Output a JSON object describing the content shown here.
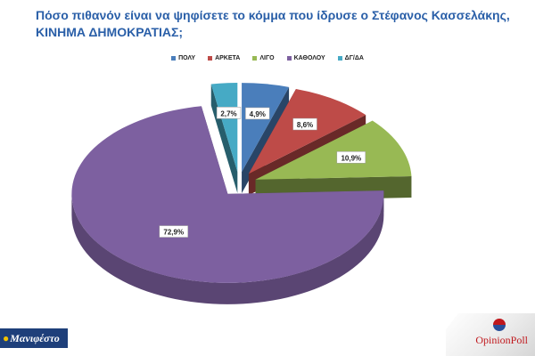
{
  "title_lines": [
    "Πόσο πιθανόν είναι να ψηφίσετε το κόμμα που ίδρυσε ο Στέφανος Κασσελάκης,",
    "ΚΙΝΗΜΑ ΔΗΜΟΚΡΑΤΙΑΣ;"
  ],
  "chart_data": {
    "type": "pie",
    "title": "Πόσο πιθανόν είναι να ψηφίσετε το κόμμα που ίδρυσε ο Στέφανος Κασσελάκης, ΚΙΝΗΜΑ ΔΗΜΟΚΡΑΤΙΑΣ;",
    "categories": [
      "ΠΟΛΥ",
      "ΑΡΚΕΤΑ",
      "ΛΙΓΟ",
      "ΚΑΘΟΛΟΥ",
      "ΔΓ/ΔΑ"
    ],
    "values": [
      4.9,
      8.6,
      10.9,
      72.9,
      2.7
    ],
    "data_labels": [
      "4,9%",
      "8,6%",
      "10,9%",
      "72,9%",
      "2,7%"
    ],
    "colors": [
      "#4a7ebb",
      "#be4b48",
      "#98b954",
      "#7d60a0",
      "#46aac5"
    ],
    "legend_position": "top",
    "style": "3d-exploded"
  },
  "logos": {
    "left": "Μανιφέστο",
    "right": "OpinionPoll"
  }
}
